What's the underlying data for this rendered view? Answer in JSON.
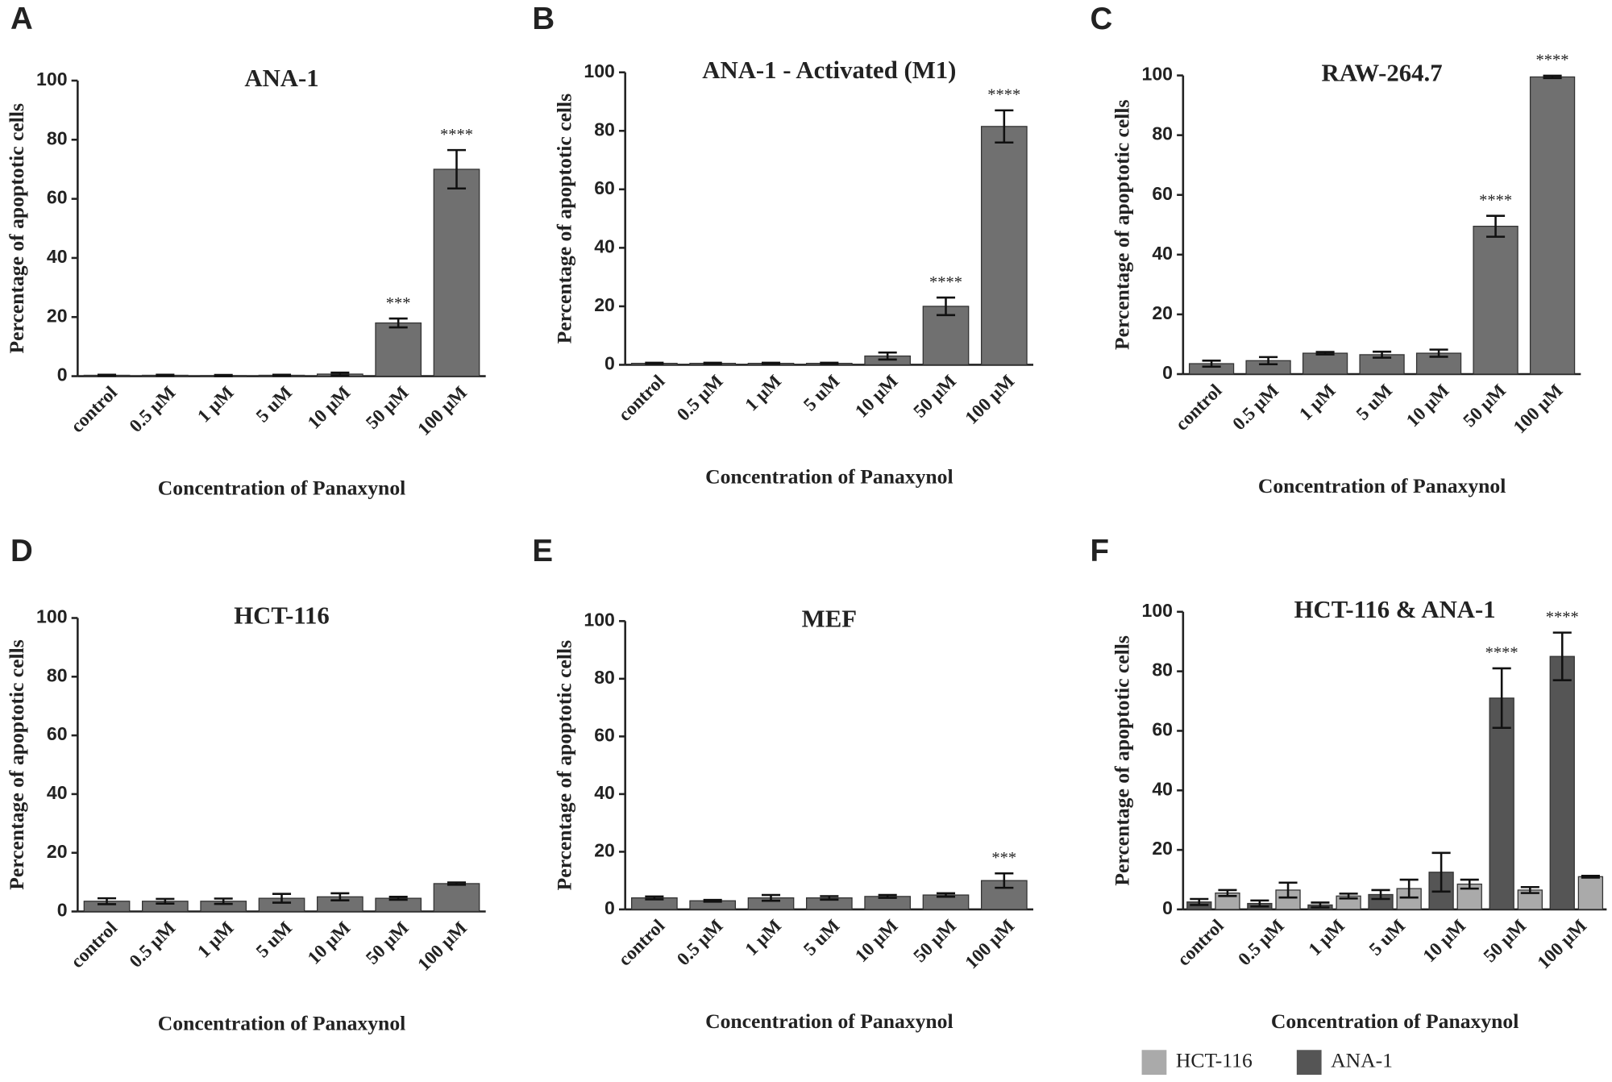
{
  "chart_data": [
    {
      "type": "bar",
      "panel": "A",
      "title": "ANA-1",
      "ylabel": "Percentage of apoptotic cells",
      "xlabel": "Concentration of Panaxynol",
      "categories": [
        "control",
        "0.5 μM",
        "1 μM",
        "5 uM",
        "10 μM",
        "50 μM",
        "100 μM"
      ],
      "values": [
        0.3,
        0.3,
        0.2,
        0.3,
        0.7,
        18,
        70
      ],
      "errors": [
        0.2,
        0.2,
        0.2,
        0.2,
        0.5,
        1.5,
        6.5
      ],
      "annotations": [
        null,
        null,
        null,
        null,
        null,
        "***",
        "****"
      ],
      "color": "#707070",
      "ylim": [
        0,
        100
      ],
      "yticks": [
        0,
        20,
        40,
        60,
        80,
        100
      ]
    },
    {
      "type": "bar",
      "panel": "B",
      "title": "ANA-1 - Activated (M1)",
      "ylabel": "Percentage of apoptotic cells",
      "xlabel": "Concentration of Panaxynol",
      "categories": [
        "control",
        "0.5 μM",
        "1 μM",
        "5 uM",
        "10 μM",
        "50 μM",
        "100 μM"
      ],
      "values": [
        0.5,
        0.5,
        0.5,
        0.5,
        3,
        20,
        81.5
      ],
      "errors": [
        0.2,
        0.2,
        0.2,
        0.2,
        1.2,
        3,
        5.5
      ],
      "annotations": [
        null,
        null,
        null,
        null,
        null,
        "****",
        "****"
      ],
      "color": "#707070",
      "ylim": [
        0,
        100
      ],
      "yticks": [
        0,
        20,
        40,
        60,
        80,
        100
      ]
    },
    {
      "type": "bar",
      "panel": "C",
      "title": "RAW-264.7",
      "ylabel": "Percentage of apoptotic cells",
      "xlabel": "Concentration of Panaxynol",
      "categories": [
        "control",
        "0.5 μM",
        "1 μM",
        "5 uM",
        "10 μM",
        "50 μM",
        "100 μM"
      ],
      "values": [
        3.5,
        4.5,
        7,
        6.5,
        7,
        49.5,
        99.5
      ],
      "errors": [
        1,
        1.2,
        0.4,
        1,
        1.2,
        3.5,
        0.4
      ],
      "annotations": [
        null,
        null,
        null,
        null,
        null,
        "****",
        "****"
      ],
      "color": "#707070",
      "ylim": [
        0,
        100
      ],
      "yticks": [
        0,
        20,
        40,
        60,
        80,
        100
      ]
    },
    {
      "type": "bar",
      "panel": "D",
      "title": "HCT-116",
      "ylabel": "Percentage of apoptotic cells",
      "xlabel": "Concentration of Panaxynol",
      "categories": [
        "control",
        "0.5 μM",
        "1 μM",
        "5 uM",
        "10 μM",
        "50 μM",
        "100 μM"
      ],
      "values": [
        3.5,
        3.5,
        3.5,
        4.5,
        5,
        4.5,
        9.5
      ],
      "errors": [
        1,
        0.8,
        0.9,
        1.5,
        1.2,
        0.5,
        0.4
      ],
      "color": "#707070",
      "ylim": [
        0,
        100
      ],
      "yticks": [
        0,
        20,
        40,
        60,
        80,
        100
      ]
    },
    {
      "type": "bar",
      "panel": "E",
      "title": "MEF",
      "ylabel": "Percentage of apoptotic cells",
      "xlabel": "Concentration of Panaxynol",
      "categories": [
        "control",
        "0.5 μM",
        "1 μM",
        "5 uM",
        "10 μM",
        "50 μM",
        "100 μM"
      ],
      "values": [
        4,
        3,
        4,
        4,
        4.5,
        5,
        10
      ],
      "errors": [
        0.5,
        0.3,
        1,
        0.6,
        0.5,
        0.6,
        2.5
      ],
      "annotations": [
        null,
        null,
        null,
        null,
        null,
        null,
        "***"
      ],
      "color": "#707070",
      "ylim": [
        0,
        100
      ],
      "yticks": [
        0,
        20,
        40,
        60,
        80,
        100
      ]
    },
    {
      "type": "bar",
      "panel": "F",
      "title": "HCT-116 & ANA-1",
      "ylabel": "Percentage of apoptotic cells",
      "xlabel": "Concentration of Panaxynol",
      "categories": [
        "control",
        "0.5 μM",
        "1 μM",
        "5 uM",
        "10 μM",
        "50 μM",
        "100 μM"
      ],
      "series": [
        {
          "name": "HCT-116",
          "color": "#aaaaaa",
          "values": [
            5.5,
            6.5,
            4.5,
            7,
            8.5,
            6.5,
            11
          ],
          "errors": [
            1,
            2.5,
            0.8,
            3,
            1.5,
            1,
            0.3
          ]
        },
        {
          "name": "ANA-1",
          "color": "#555555",
          "values": [
            2.5,
            2,
            1.5,
            5,
            12.5,
            71,
            85
          ],
          "errors": [
            1,
            1,
            0.8,
            1.5,
            6.5,
            10,
            8
          ],
          "annotations": [
            null,
            null,
            null,
            null,
            null,
            "****",
            "****"
          ]
        }
      ],
      "legend": "bottom",
      "ylim": [
        0,
        100
      ],
      "yticks": [
        0,
        20,
        40,
        60,
        80,
        100
      ]
    }
  ]
}
